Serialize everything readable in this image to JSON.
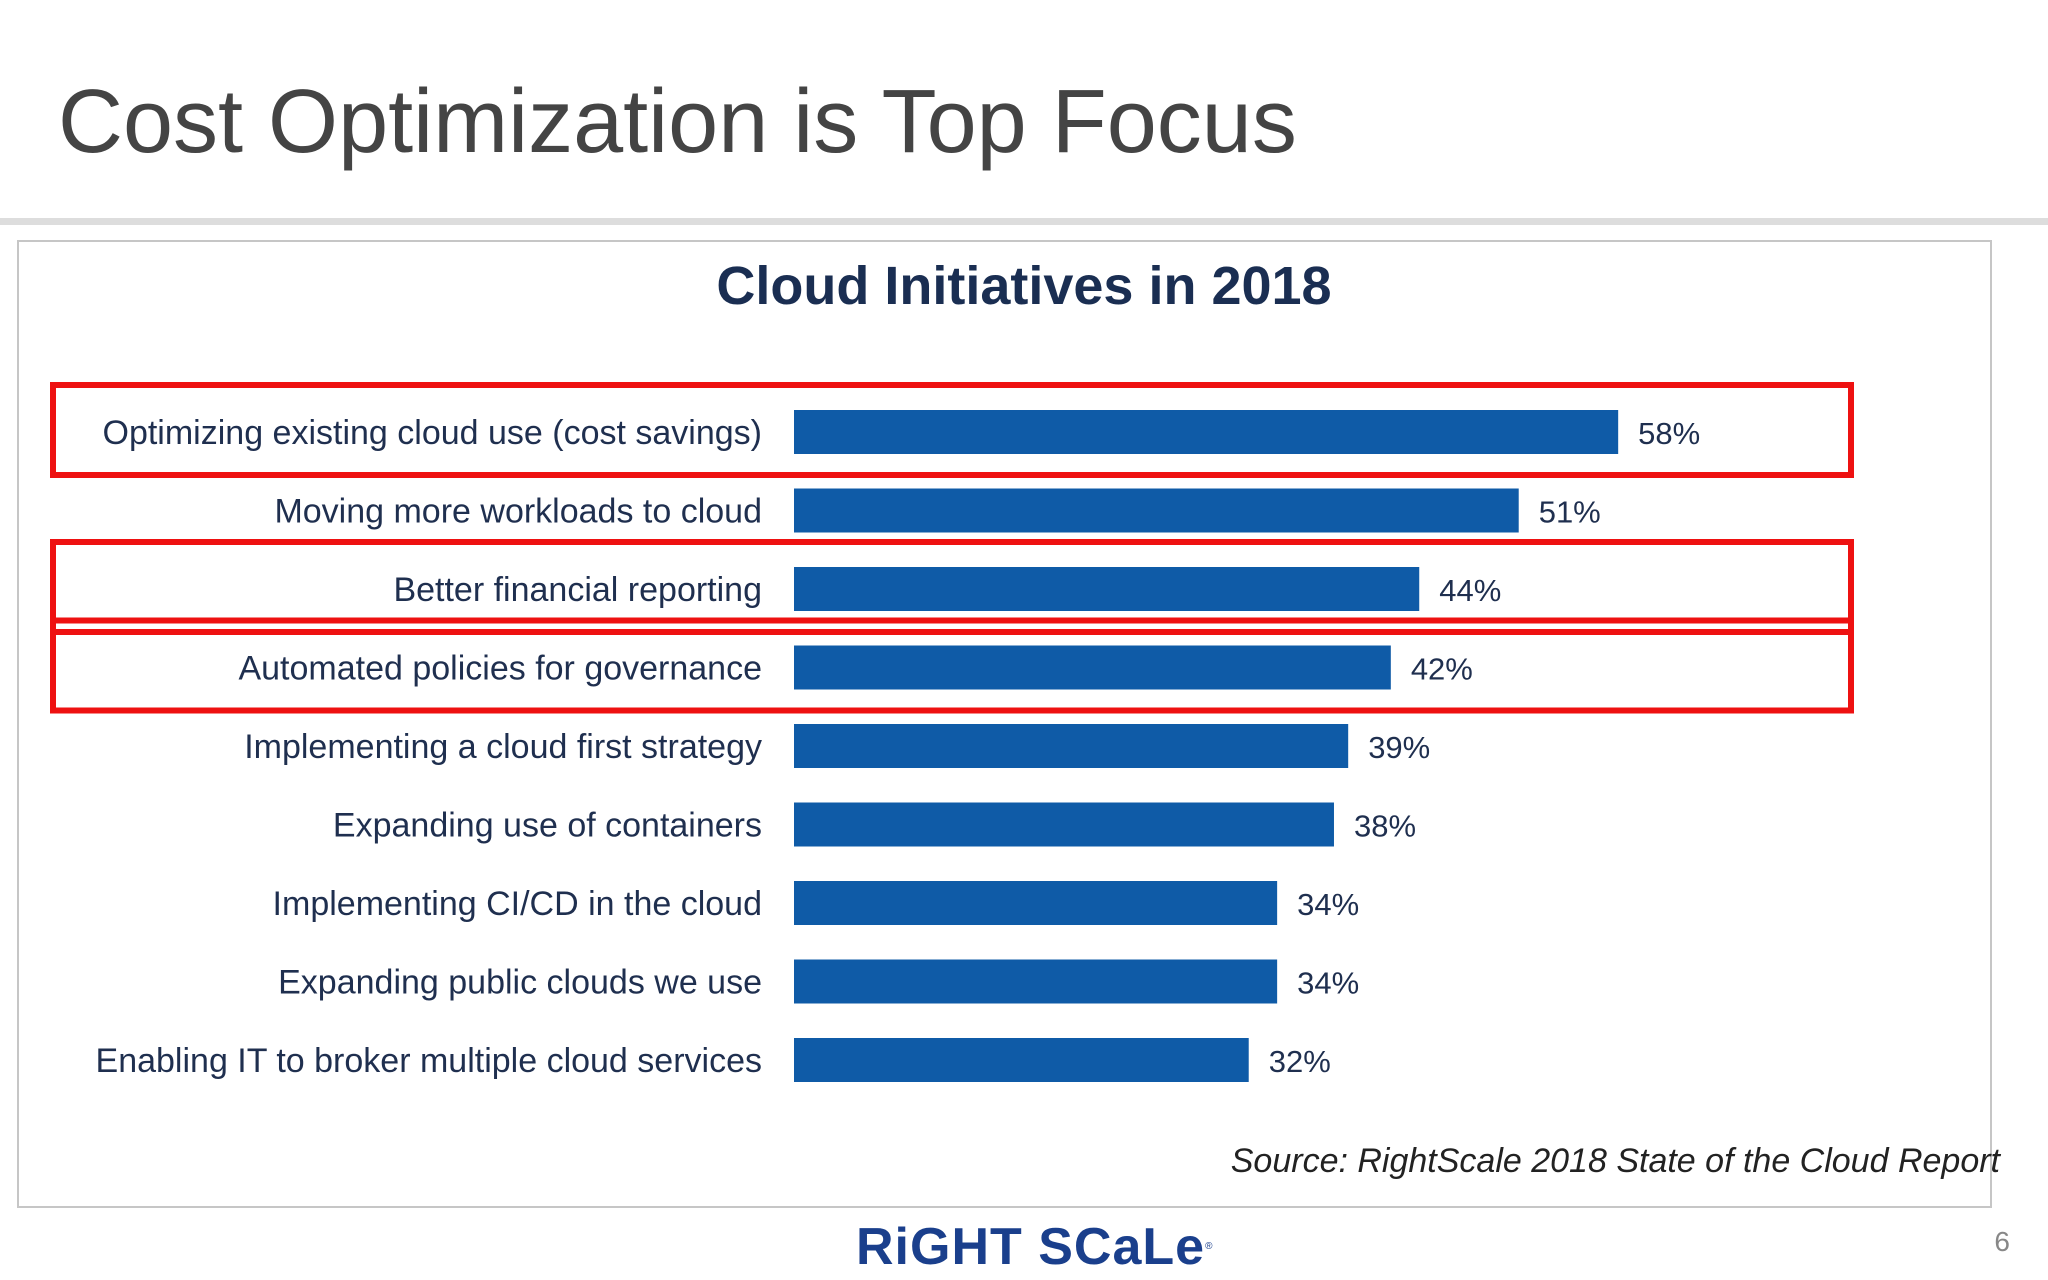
{
  "slide": {
    "title": "Cost Optimization is Top Focus",
    "page_number": "6"
  },
  "footer": {
    "logo_text": "RiGHT SCaLe",
    "logo_mark": "®"
  },
  "colors": {
    "bar": "#0f5ba7",
    "highlight_box": "#ee1111",
    "chart_title": "#1a2e52",
    "label_text": "#1f2f4f"
  },
  "chart_data": {
    "type": "bar",
    "orientation": "horizontal",
    "title": "Cloud Initiatives in 2018",
    "source": "Source: RightScale 2018 State of the Cloud Report",
    "categories": [
      "Optimizing existing cloud use (cost savings)",
      "Moving more workloads to cloud",
      "Better financial reporting",
      "Automated policies for governance",
      "Implementing a cloud first strategy",
      "Expanding use of containers",
      "Implementing CI/CD in the cloud",
      "Expanding public clouds we use",
      "Enabling IT to broker multiple cloud services"
    ],
    "values": [
      58,
      51,
      44,
      42,
      39,
      38,
      34,
      34,
      32
    ],
    "value_labels": [
      "58%",
      "51%",
      "44%",
      "42%",
      "39%",
      "38%",
      "34%",
      "34%",
      "32%"
    ],
    "unit": "%",
    "highlighted_categories": [
      0,
      2,
      3
    ],
    "xlim": [
      0,
      100
    ],
    "grid": false,
    "legend": "none"
  }
}
